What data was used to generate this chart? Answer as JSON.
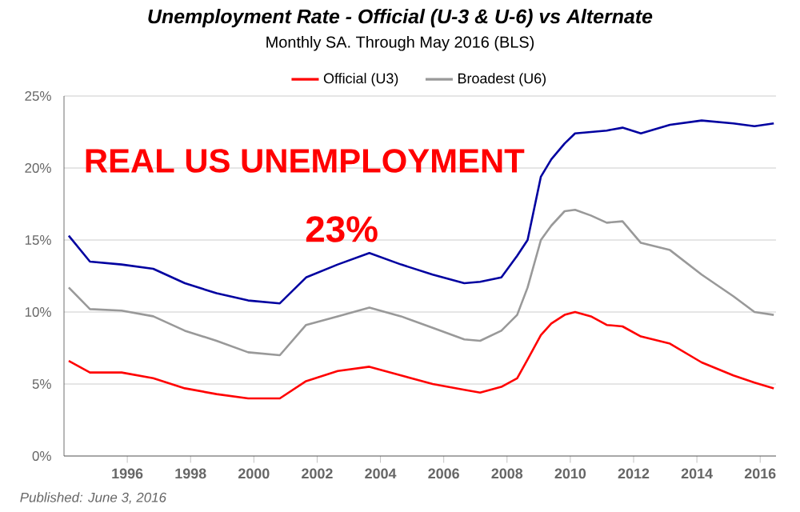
{
  "chart_data": {
    "type": "line",
    "title": "Unemployment Rate - Official (U-3 & U-6) vs Alternate",
    "subtitle": "Monthly SA. Through May 2016 (BLS)",
    "annotations": [
      "REAL US UNEMPLOYMENT",
      "23%",
      "Published: June 3, 2016"
    ],
    "x": [
      1994.15,
      1994.82,
      1995.82,
      1996.82,
      1997.82,
      1998.82,
      1999.82,
      2000.82,
      2001.65,
      2002.65,
      2003.65,
      2004.65,
      2005.65,
      2006.65,
      2007.15,
      2007.82,
      2008.32,
      2008.65,
      2009.07,
      2009.4,
      2009.82,
      2010.15,
      2010.65,
      2011.15,
      2011.65,
      2012.23,
      2013.15,
      2014.15,
      2015.15,
      2015.82,
      2016.43
    ],
    "series": [
      {
        "name": "Official (U3)",
        "color": "#ff0000",
        "values": [
          6.6,
          5.8,
          5.8,
          5.4,
          4.7,
          4.3,
          4.0,
          4.0,
          5.2,
          5.9,
          6.2,
          5.6,
          5.0,
          4.6,
          4.4,
          4.8,
          5.4,
          6.7,
          8.4,
          9.2,
          9.8,
          10.0,
          9.7,
          9.1,
          9.0,
          8.3,
          7.8,
          6.5,
          5.6,
          5.1,
          4.7
        ]
      },
      {
        "name": "Broadest (U6)",
        "color": "#999999",
        "values": [
          11.7,
          10.2,
          10.1,
          9.7,
          8.7,
          8.0,
          7.2,
          7.0,
          9.1,
          9.7,
          10.3,
          9.7,
          8.9,
          8.1,
          8.0,
          8.7,
          9.8,
          11.7,
          15.0,
          16.0,
          17.0,
          17.1,
          16.7,
          16.2,
          16.3,
          14.8,
          14.3,
          12.6,
          11.1,
          10.0,
          9.8
        ]
      },
      {
        "color": "#0000a0",
        "values": [
          15.3,
          13.5,
          13.3,
          13.0,
          12.0,
          11.3,
          10.8,
          10.6,
          12.4,
          13.3,
          14.1,
          13.3,
          12.6,
          12.0,
          12.1,
          12.4,
          13.9,
          15.0,
          19.4,
          20.6,
          21.7,
          22.4,
          22.5,
          22.6,
          22.8,
          22.4,
          23.0,
          23.3,
          23.1,
          22.9,
          23.1
        ]
      }
    ],
    "xlim": [
      1994,
      2016.5
    ],
    "xticks": [
      1996,
      1998,
      2000,
      2002,
      2004,
      2006,
      2008,
      2010,
      2012,
      2014,
      2016
    ],
    "ylim": [
      0,
      25
    ],
    "yticks": [
      {
        "value": 0,
        "label": "0%"
      },
      {
        "value": 5,
        "label": "5%"
      },
      {
        "value": 10,
        "label": "10%"
      },
      {
        "value": 15,
        "label": "15%"
      },
      {
        "value": 20,
        "label": "20%"
      },
      {
        "value": 25,
        "label": "25%"
      }
    ],
    "grid": "y",
    "legend": "top",
    "marker": "none",
    "line_style": "solid"
  }
}
